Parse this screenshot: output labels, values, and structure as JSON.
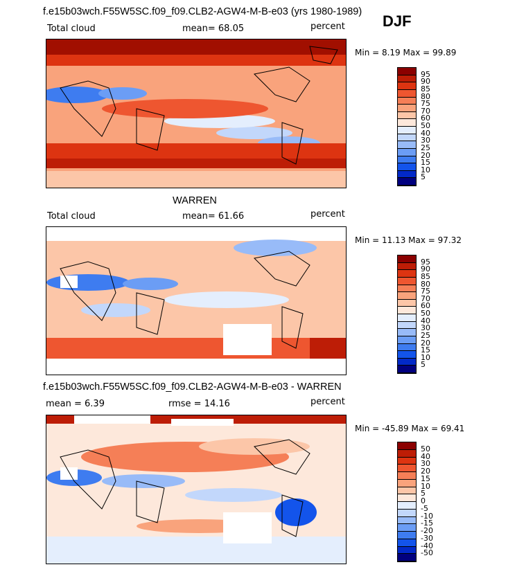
{
  "season": "DJF",
  "colors": {
    "ramp1": [
      "#01007f",
      "#0229c8",
      "#1354eb",
      "#3e7cf0",
      "#6b9df5",
      "#98bbf8",
      "#c2d7fb",
      "#e4eefd",
      "#fde8db",
      "#fcc6a8",
      "#f9a37c",
      "#f57f57",
      "#ee5630",
      "#dd3411",
      "#bd1d06",
      "#8b0000"
    ],
    "ramp2": [
      "#01007f",
      "#0229c8",
      "#1354eb",
      "#3e7cf0",
      "#6b9df5",
      "#98bbf8",
      "#c2d7fb",
      "#e4eefd",
      "#fde8db",
      "#fcc6a8",
      "#f9a37c",
      "#f57f57",
      "#ee5630",
      "#dd3411",
      "#bd1d06",
      "#8b0000"
    ]
  },
  "panels": [
    {
      "title": "f.e15b03wch.F55W5SC.f09_f09.CLB2-AGW4-M-B-e03 (yrs 1980-1989)",
      "left_label": "Total cloud",
      "center_label": "mean=  68.05",
      "right_label": "percent",
      "minmax": "Min =   8.19 Max =  99.89",
      "colorbar_labels": [
        "95",
        "90",
        "85",
        "80",
        "75",
        "70",
        "60",
        "50",
        "40",
        "30",
        "25",
        "20",
        "15",
        "10",
        "5"
      ]
    },
    {
      "title": "WARREN",
      "left_label": "Total cloud",
      "center_label": "mean=  61.66",
      "right_label": "percent",
      "minmax": "Min =  11.13 Max =  97.32",
      "colorbar_labels": [
        "95",
        "90",
        "85",
        "80",
        "75",
        "70",
        "60",
        "50",
        "40",
        "30",
        "25",
        "20",
        "15",
        "10",
        "5"
      ]
    },
    {
      "title": "f.e15b03wch.F55W5SC.f09_f09.CLB2-AGW4-M-B-e03 - WARREN",
      "left_label": "mean =    6.39",
      "center_label": "rmse =  14.16",
      "right_label": "percent",
      "minmax": "Min = -45.89 Max =  69.41",
      "colorbar_labels": [
        "50",
        "40",
        "30",
        "20",
        "15",
        "10",
        "5",
        "0",
        "-5",
        "-10",
        "-15",
        "-20",
        "-30",
        "-40",
        "-50"
      ]
    }
  ]
}
